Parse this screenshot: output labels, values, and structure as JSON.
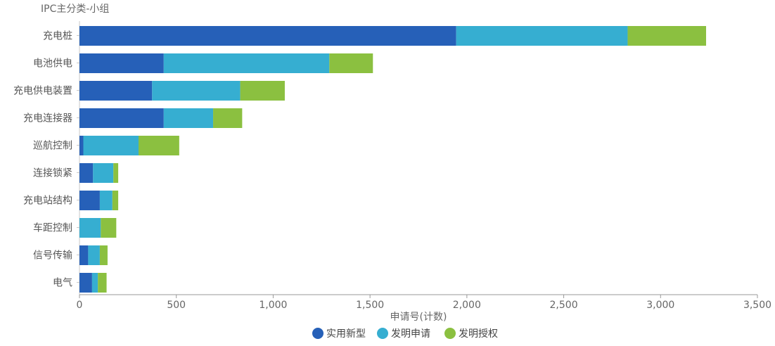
{
  "chart_data": {
    "type": "bar",
    "orientation": "horizontal",
    "stacked": true,
    "ytitle": "IPC主分类-小组",
    "xlabel": "申请号(计数)",
    "categories": [
      "充电桩",
      "电池供电",
      "充电供电装置",
      "充电连接器",
      "巡航控制",
      "连接锁紧",
      "充电站结构",
      "车距控制",
      "信号传输",
      "电气"
    ],
    "series": [
      {
        "name": "实用新型",
        "color": "#2660b8",
        "values": [
          1945,
          435,
          375,
          435,
          20,
          70,
          105,
          0,
          45,
          65
        ]
      },
      {
        "name": "发明申请",
        "color": "#36aed1",
        "values": [
          885,
          855,
          455,
          255,
          285,
          105,
          65,
          110,
          60,
          30
        ]
      },
      {
        "name": "发明授权",
        "color": "#8bc040",
        "values": [
          405,
          225,
          230,
          150,
          210,
          25,
          30,
          80,
          40,
          45
        ]
      }
    ],
    "xlim": [
      0,
      3500
    ],
    "xticks": [
      0,
      500,
      1000,
      1500,
      2000,
      2500,
      3000,
      3500
    ],
    "xtick_labels": [
      "0",
      "500",
      "1,000",
      "1,500",
      "2,000",
      "2,500",
      "3,000",
      "3,500"
    ],
    "grid": false,
    "legend_position": "bottom-center"
  }
}
